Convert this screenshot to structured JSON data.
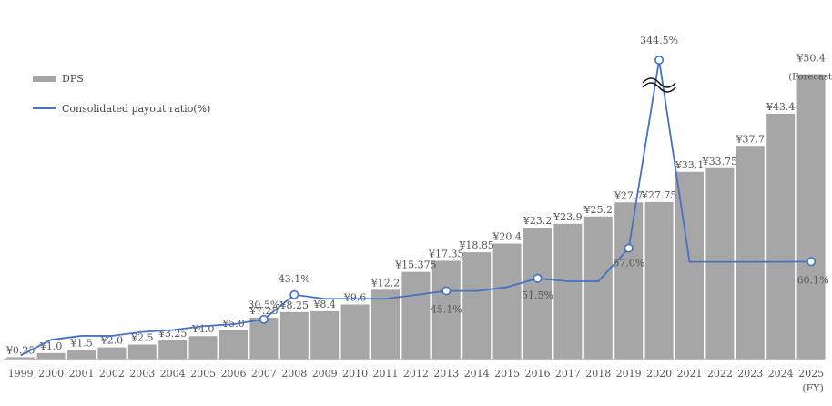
{
  "chart_data": {
    "type": "bar",
    "title": "",
    "x_unit_label": "(FY)",
    "categories": [
      "1999",
      "2000",
      "2001",
      "2002",
      "2003",
      "2004",
      "2005",
      "2006",
      "2007",
      "2008",
      "2009",
      "2010",
      "2011",
      "2012",
      "2013",
      "2014",
      "2015",
      "2016",
      "2017",
      "2018",
      "2019",
      "2020",
      "2021",
      "2022",
      "2023",
      "2024",
      "2025"
    ],
    "series": [
      {
        "name": "DPS",
        "kind": "bar",
        "color": "#a6a6a6",
        "values": [
          0.25,
          1.0,
          1.5,
          2.0,
          2.5,
          3.25,
          4.0,
          5.0,
          7.25,
          8.25,
          8.4,
          9.6,
          12.2,
          15.375,
          17.35,
          18.85,
          20.4,
          23.2,
          23.9,
          25.2,
          27.7,
          27.75,
          33.1,
          33.75,
          37.7,
          43.4,
          50.4
        ],
        "labels": [
          "¥0.25",
          "¥1.0",
          "¥1.5",
          "¥2.0",
          "¥2.5",
          "¥3.25",
          "¥4.0",
          "¥5.0",
          "¥7.25",
          "¥8.25",
          "¥8.4",
          "¥9.6",
          "¥12.2",
          "¥15.375",
          "¥17.35",
          "¥18.85",
          "¥20.4",
          "¥23.2",
          "¥23.9",
          "¥25.2",
          "¥27.7",
          "¥27.75",
          "¥33.1",
          "¥33.75",
          "¥37.7",
          "¥43.4",
          "¥50.4"
        ],
        "forecast_note": "(Forecast)"
      },
      {
        "name": "Consolidated payout ratio(%)",
        "kind": "line",
        "color": "#4472c4",
        "values": [
          12,
          20,
          22,
          22,
          24,
          25,
          27,
          28,
          30.5,
          43.1,
          41,
          41,
          41,
          43,
          45.1,
          45,
          47,
          51.5,
          50,
          50,
          67.0,
          344.5,
          60,
          60,
          60,
          60,
          60.1
        ],
        "marked_points": [
          {
            "category": "2007",
            "label": "30.5%"
          },
          {
            "category": "2008",
            "label": "43.1%"
          },
          {
            "category": "2013",
            "label": "45.1%"
          },
          {
            "category": "2016",
            "label": "51.5%"
          },
          {
            "category": "2019",
            "label": "67.0%"
          },
          {
            "category": "2020",
            "label": "344.5%",
            "axis_break": true
          },
          {
            "category": "2025",
            "label": "60.1%"
          }
        ]
      }
    ],
    "grid": false,
    "legend_position": "top-left"
  },
  "legend": {
    "dps_label": "DPS",
    "ratio_label": "Consolidated payout ratio(%)"
  }
}
